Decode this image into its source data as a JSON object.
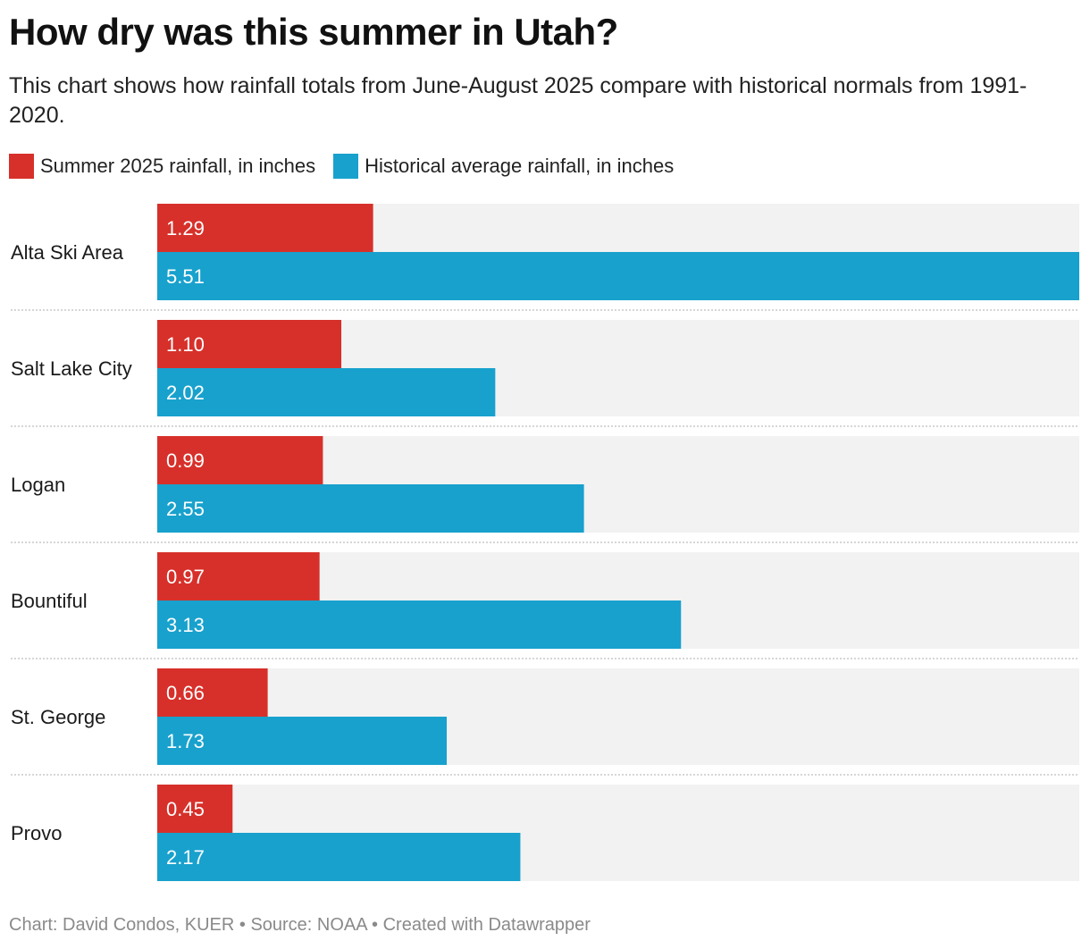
{
  "title": "How dry was this summer in Utah?",
  "subtitle": "This chart shows how rainfall totals from June-August 2025 compare with historical normals from 1991-2020.",
  "legend": [
    {
      "label": "Summer 2025 rainfall, in inches",
      "color": "#d7302a"
    },
    {
      "label": "Historical average rainfall, in inches",
      "color": "#18a1cd"
    }
  ],
  "footer": "Chart: David Condos, KUER • Source: NOAA • Created with Datawrapper",
  "chart_data": {
    "type": "bar",
    "orientation": "horizontal",
    "categories": [
      "Alta Ski Area",
      "Salt Lake City",
      "Logan",
      "Bountiful",
      "St. George",
      "Provo"
    ],
    "series": [
      {
        "name": "Summer 2025 rainfall, in inches",
        "color": "#d7302a",
        "values": [
          1.29,
          1.1,
          0.99,
          0.97,
          0.66,
          0.45
        ],
        "labels": [
          "1.29",
          "1.10",
          "0.99",
          "0.97",
          "0.66",
          "0.45"
        ]
      },
      {
        "name": "Historical average rainfall, in inches",
        "color": "#18a1cd",
        "values": [
          5.51,
          2.02,
          2.55,
          3.13,
          1.73,
          2.17
        ],
        "labels": [
          "5.51",
          "2.02",
          "2.55",
          "3.13",
          "1.73",
          "2.17"
        ]
      }
    ],
    "xlim": [
      0,
      5.51
    ],
    "background_color": "#f2f2f2",
    "grid": false,
    "legend_position": "top-left"
  }
}
